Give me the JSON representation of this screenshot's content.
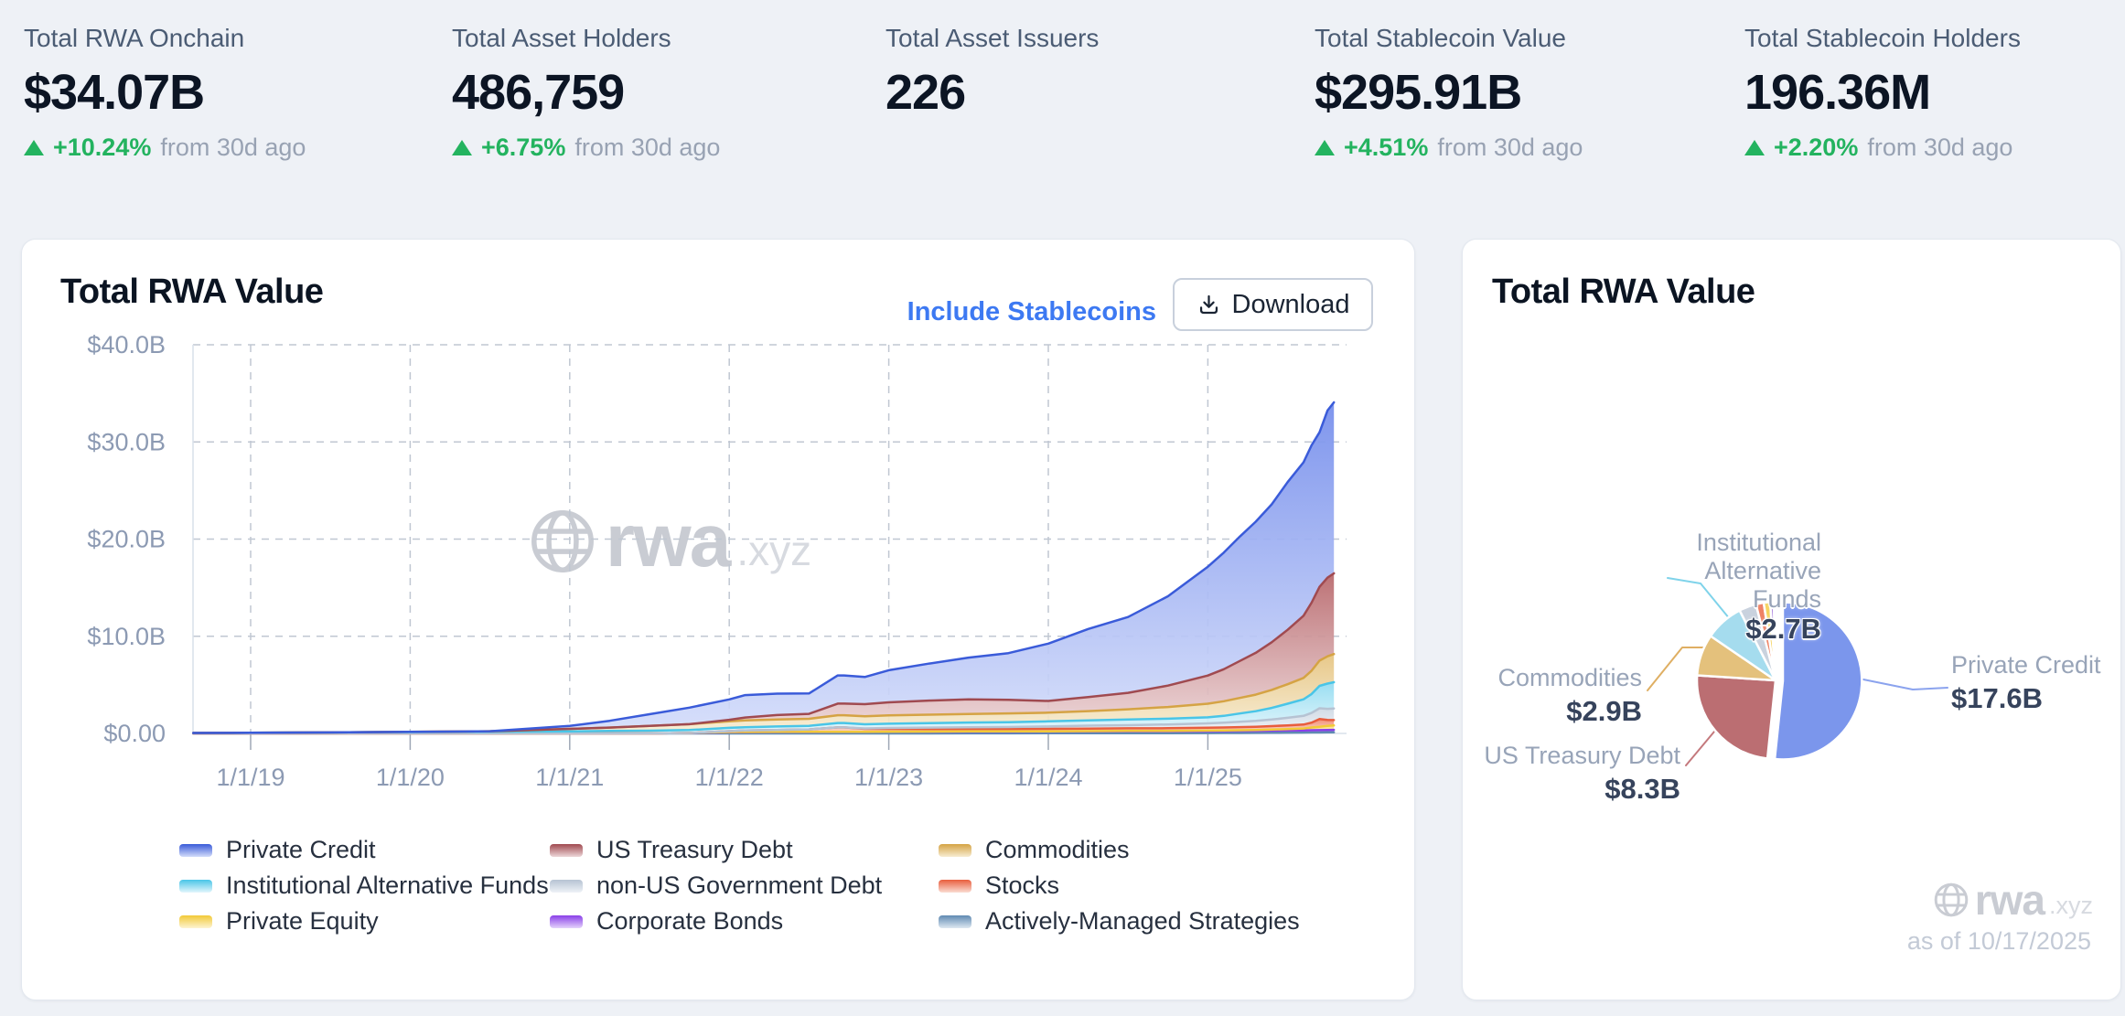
{
  "stats": [
    {
      "label": "Total RWA Onchain",
      "value": "$34.07B",
      "change": "+10.24%",
      "change_note": "from 30d ago"
    },
    {
      "label": "Total Asset Holders",
      "value": "486,759",
      "change": "+6.75%",
      "change_note": "from 30d ago"
    },
    {
      "label": "Total Asset Issuers",
      "value": "226"
    },
    {
      "label": "Total Stablecoin Value",
      "value": "$295.91B",
      "change": "+4.51%",
      "change_note": "from 30d ago"
    },
    {
      "label": "Total Stablecoin Holders",
      "value": "196.36M",
      "change": "+2.20%",
      "change_note": "from 30d ago"
    }
  ],
  "colors": {
    "positive_green": "#23b35f",
    "link_blue": "#3d79f2",
    "axis_label": "#8c9ab3",
    "grid_dash": "#c0c7d2",
    "axis_line": "#d9e0ea",
    "tick": "#9fa8b6",
    "watermark": "#c9ccd3"
  },
  "area_card": {
    "title": "Total RWA Value",
    "include_stablecoins_label": "Include Stablecoins",
    "download_label": "Download",
    "watermark_brand": "rwa",
    "watermark_suffix": ".xyz"
  },
  "pie_card": {
    "title": "Total RWA Value",
    "as_of": "as of 10/17/2025",
    "watermark_brand": "rwa",
    "watermark_suffix": ".xyz",
    "callouts": {
      "iaf_line1": "Institutional",
      "iaf_line2": "Alternative",
      "iaf_line3": "Funds",
      "iaf_value": "$2.7B",
      "private_credit_name": "Private Credit",
      "private_credit_value": "$17.6B",
      "commodities_name": "Commodities",
      "commodities_value": "$2.9B",
      "us_treasury_name": "US Treasury Debt",
      "us_treasury_value": "$8.3B"
    }
  },
  "chart_data": [
    {
      "type": "area",
      "title": "Total RWA Value",
      "stacked": true,
      "unit": "$B",
      "ylim": [
        0,
        40
      ],
      "grid": true,
      "legend_position": "bottom",
      "y_ticks": [
        {
          "value": 0,
          "label": "$0.00"
        },
        {
          "value": 10,
          "label": "$10.0B"
        },
        {
          "value": 20,
          "label": "$20.0B"
        },
        {
          "value": 30,
          "label": "$30.0B"
        },
        {
          "value": 40,
          "label": "$40.0B"
        }
      ],
      "x_ticks": [
        {
          "year": 2019,
          "label": "1/1/19"
        },
        {
          "year": 2020,
          "label": "1/1/20"
        },
        {
          "year": 2021,
          "label": "1/1/21"
        },
        {
          "year": 2022,
          "label": "1/1/22"
        },
        {
          "year": 2023,
          "label": "1/1/23"
        },
        {
          "year": 2024,
          "label": "1/1/24"
        },
        {
          "year": 2025,
          "label": "1/1/25"
        }
      ],
      "x": [
        2018.64,
        2019.0,
        2019.5,
        2020.0,
        2020.5,
        2021.0,
        2021.25,
        2021.5,
        2021.75,
        2022.0,
        2022.1,
        2022.3,
        2022.5,
        2022.68,
        2022.72,
        2022.85,
        2023.0,
        2023.25,
        2023.5,
        2023.75,
        2024.0,
        2024.25,
        2024.5,
        2024.75,
        2025.0,
        2025.1,
        2025.2,
        2025.3,
        2025.4,
        2025.5,
        2025.6,
        2025.65,
        2025.7,
        2025.75,
        2025.79
      ],
      "series": [
        {
          "name": "Private Credit",
          "line": "#3a5bd9",
          "fill_top": "#7890ec",
          "fill_bottom": "#d3dcfa",
          "values": [
            0,
            0,
            0,
            0,
            0,
            0.3,
            0.7,
            1.2,
            1.7,
            2.1,
            2.3,
            2.2,
            2.1,
            2.9,
            2.9,
            2.8,
            3.3,
            3.8,
            4.3,
            4.8,
            5.9,
            7.0,
            7.8,
            9.2,
            11.2,
            12.0,
            12.8,
            13.5,
            14.2,
            15.2,
            15.8,
            16.2,
            15.9,
            17.2,
            17.6
          ]
        },
        {
          "name": "US Treasury Debt",
          "line": "#a04a50",
          "fill_top": "#b96a6e",
          "fill_bottom": "#ecd6d8",
          "values": [
            0,
            0,
            0,
            0,
            0,
            0,
            0,
            0,
            0,
            0.15,
            0.3,
            0.45,
            0.5,
            1.2,
            1.2,
            1.25,
            1.35,
            1.45,
            1.5,
            1.4,
            1.2,
            1.45,
            1.7,
            2.2,
            2.9,
            3.3,
            3.8,
            4.3,
            4.9,
            5.6,
            6.4,
            7.0,
            7.6,
            8.1,
            8.3
          ]
        },
        {
          "name": "Commodities",
          "line": "#d5a344",
          "fill_top": "#e6c583",
          "fill_bottom": "#f7ecd2",
          "values": [
            0,
            0,
            0,
            0.02,
            0.05,
            0.25,
            0.35,
            0.5,
            0.6,
            0.68,
            0.7,
            0.72,
            0.73,
            0.8,
            0.8,
            0.82,
            0.85,
            0.87,
            0.88,
            0.9,
            0.9,
            0.95,
            1.05,
            1.2,
            1.4,
            1.5,
            1.6,
            1.7,
            1.85,
            2.0,
            2.2,
            2.4,
            2.6,
            2.8,
            2.9
          ]
        },
        {
          "name": "Institutional Alternative Funds",
          "line": "#49c5e7",
          "fill_top": "#93dcf1",
          "fill_bottom": "#e3f6fc",
          "values": [
            0.05,
            0.07,
            0.1,
            0.14,
            0.18,
            0.22,
            0.25,
            0.28,
            0.3,
            0.33,
            0.34,
            0.36,
            0.37,
            0.45,
            0.45,
            0.42,
            0.44,
            0.46,
            0.48,
            0.5,
            0.52,
            0.55,
            0.58,
            0.6,
            0.62,
            0.7,
            0.85,
            1.0,
            1.2,
            1.45,
            1.7,
            1.95,
            2.3,
            2.6,
            2.7
          ]
        },
        {
          "name": "non-US Government Debt",
          "line": "#b6c3d3",
          "fill_top": "#cfd9e4",
          "fill_bottom": "#eef2f7",
          "values": [
            0,
            0,
            0,
            0,
            0,
            0,
            0,
            0,
            0,
            0,
            0,
            0,
            0,
            0,
            0,
            0.05,
            0.1,
            0.15,
            0.18,
            0.2,
            0.25,
            0.3,
            0.32,
            0.38,
            0.45,
            0.5,
            0.55,
            0.6,
            0.68,
            0.78,
            0.9,
            1.0,
            1.1,
            1.15,
            1.2
          ]
        },
        {
          "name": "Stocks",
          "line": "#e85d3d",
          "fill_top": "#f0886c",
          "fill_bottom": "#fbdcd2",
          "values": [
            0,
            0,
            0,
            0,
            0,
            0,
            0,
            0,
            0,
            0.1,
            0.15,
            0.2,
            0.25,
            0.45,
            0.45,
            0.3,
            0.28,
            0.26,
            0.25,
            0.25,
            0.25,
            0.26,
            0.27,
            0.28,
            0.3,
            0.3,
            0.32,
            0.33,
            0.35,
            0.38,
            0.4,
            0.5,
            0.8,
            0.6,
            0.55
          ]
        },
        {
          "name": "Private Equity",
          "line": "#f2ca38",
          "fill_top": "#f7dd78",
          "fill_bottom": "#fdf4d2",
          "values": [
            0,
            0,
            0,
            0,
            0,
            0,
            0,
            0,
            0,
            0.02,
            0.02,
            0.02,
            0.02,
            0.02,
            0.02,
            0.02,
            0.02,
            0.03,
            0.03,
            0.03,
            0.03,
            0.04,
            0.05,
            0.05,
            0.06,
            0.07,
            0.08,
            0.1,
            0.12,
            0.15,
            0.2,
            0.28,
            0.35,
            0.42,
            0.45
          ]
        },
        {
          "name": "Corporate Bonds",
          "line": "#8a3fe8",
          "fill_top": "#aa70f2",
          "fill_bottom": "#e4d3fb",
          "values": [
            0,
            0,
            0,
            0,
            0,
            0,
            0,
            0,
            0.05,
            0.12,
            0.13,
            0.14,
            0.14,
            0.15,
            0.15,
            0.15,
            0.16,
            0.16,
            0.17,
            0.17,
            0.17,
            0.18,
            0.18,
            0.18,
            0.19,
            0.19,
            0.2,
            0.2,
            0.21,
            0.22,
            0.22,
            0.23,
            0.24,
            0.25,
            0.25
          ]
        },
        {
          "name": "Actively-Managed Strategies",
          "line": "#5f8ab2",
          "fill_top": "#8fb0cb",
          "fill_bottom": "#dde8f1",
          "values": [
            0,
            0,
            0,
            0,
            0,
            0,
            0,
            0,
            0,
            0,
            0,
            0,
            0,
            0,
            0,
            0,
            0,
            0,
            0.01,
            0.01,
            0.02,
            0.02,
            0.03,
            0.03,
            0.04,
            0.05,
            0.05,
            0.06,
            0.07,
            0.08,
            0.09,
            0.1,
            0.1,
            0.11,
            0.12
          ]
        }
      ]
    },
    {
      "type": "pie",
      "title": "Total RWA Value",
      "unit": "$B",
      "as_of": "10/17/2025",
      "slices": [
        {
          "name": "Private Credit",
          "value": 17.6,
          "label": "$17.6B",
          "color": "#7b96ec"
        },
        {
          "name": "US Treasury Debt",
          "value": 8.3,
          "label": "$8.3B",
          "color": "#bb6e72"
        },
        {
          "name": "Commodities",
          "value": 2.9,
          "label": "$2.9B",
          "color": "#e4c17c"
        },
        {
          "name": "Institutional Alternative Funds",
          "value": 2.7,
          "label": "$2.7B",
          "color": "#a5dcee"
        },
        {
          "name": "non-US Government Debt",
          "value": 1.2,
          "color": "#c9d2de"
        },
        {
          "name": "Stocks",
          "value": 0.55,
          "color": "#ef8265"
        },
        {
          "name": "Private Equity",
          "value": 0.45,
          "color": "#f6d45f"
        },
        {
          "name": "Corporate Bonds",
          "value": 0.25,
          "color": "#b08ae0"
        },
        {
          "name": "Actively-Managed Strategies",
          "value": 0.12,
          "color": "#8fb0cc"
        }
      ]
    }
  ]
}
